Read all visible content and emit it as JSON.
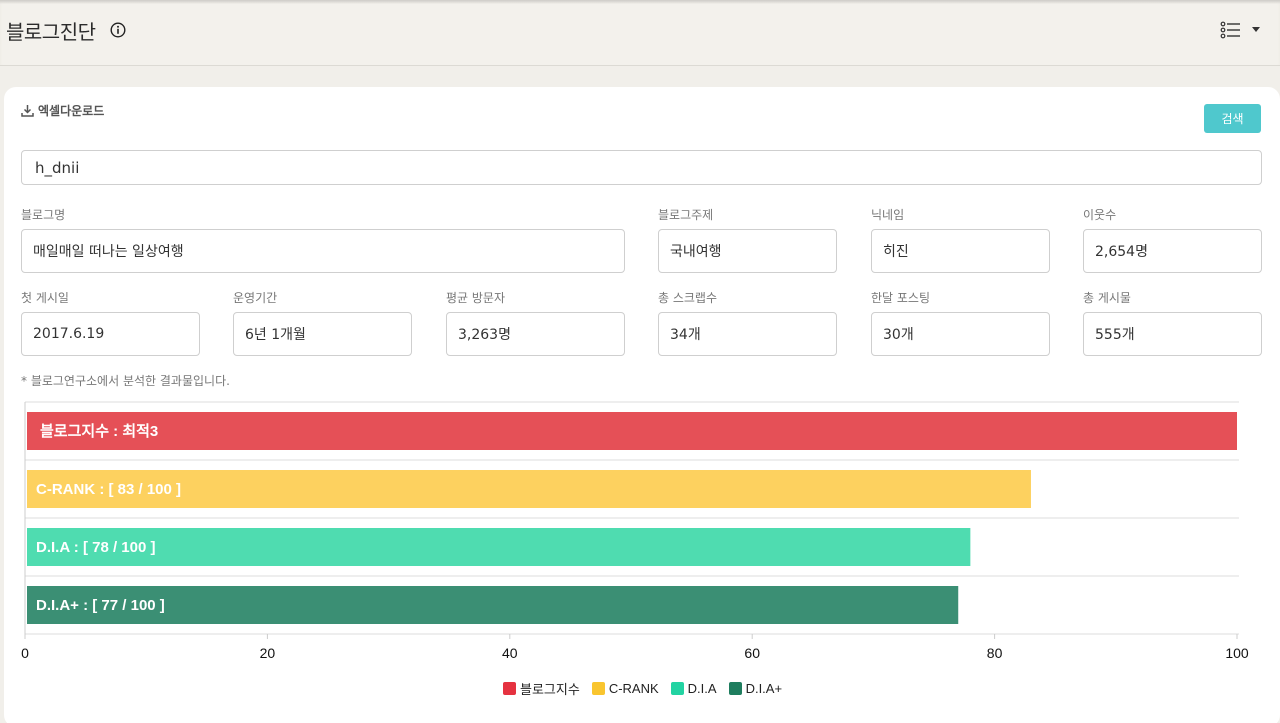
{
  "header": {
    "title": "블로그진단",
    "info_icon": "info-icon",
    "view_icon": "list-icon",
    "dropdown_icon": "caret-down-icon"
  },
  "toolbar": {
    "excel_label": "엑셀다운로드",
    "search_label": "검색"
  },
  "search": {
    "value": "h_dnii"
  },
  "fields": {
    "blog_name": {
      "label": "블로그명",
      "value": "매일매일 떠나는 일상여행"
    },
    "blog_topic": {
      "label": "블로그주제",
      "value": "국내여행"
    },
    "nickname": {
      "label": "닉네임",
      "value": "히진"
    },
    "neighbors": {
      "label": "이웃수",
      "value": "2,654명"
    },
    "first_post": {
      "label": "첫 게시일",
      "value": "2017.6.19"
    },
    "period": {
      "label": "운영기간",
      "value": "6년 1개월"
    },
    "avg_visitors": {
      "label": "평균 방문자",
      "value": "3,263명"
    },
    "scraps": {
      "label": "총 스크랩수",
      "value": "34개"
    },
    "monthly_posts": {
      "label": "한달 포스팅",
      "value": "30개"
    },
    "total_posts": {
      "label": "총 게시물",
      "value": "555개"
    }
  },
  "note": "* 블로그연구소에서 분석한 결과물입니다.",
  "chart_data": {
    "type": "bar",
    "orientation": "horizontal",
    "categories": [
      "블로그지수",
      "C-RANK",
      "D.I.A",
      "D.I.A+"
    ],
    "values": [
      100,
      83,
      78,
      77
    ],
    "bar_labels": [
      "블로그지수 : 최적3",
      "C-RANK : [ 83 / 100 ]",
      "D.I.A : [ 78 / 100 ]",
      "D.I.A+ : [ 77 / 100 ]"
    ],
    "colors": [
      "#e55057",
      "#fdd15f",
      "#4fdcb0",
      "#3b8f74"
    ],
    "xlim": [
      0,
      100
    ],
    "x_ticks": [
      "0",
      "20",
      "40",
      "60",
      "80",
      "100"
    ],
    "grid": true,
    "legend_position": "bottom",
    "legend": [
      "블로그지수",
      "C-RANK",
      "D.I.A",
      "D.I.A+"
    ],
    "legend_colors": [
      "#e53240",
      "#f9c52f",
      "#22d3a2",
      "#1e7d5e"
    ]
  }
}
